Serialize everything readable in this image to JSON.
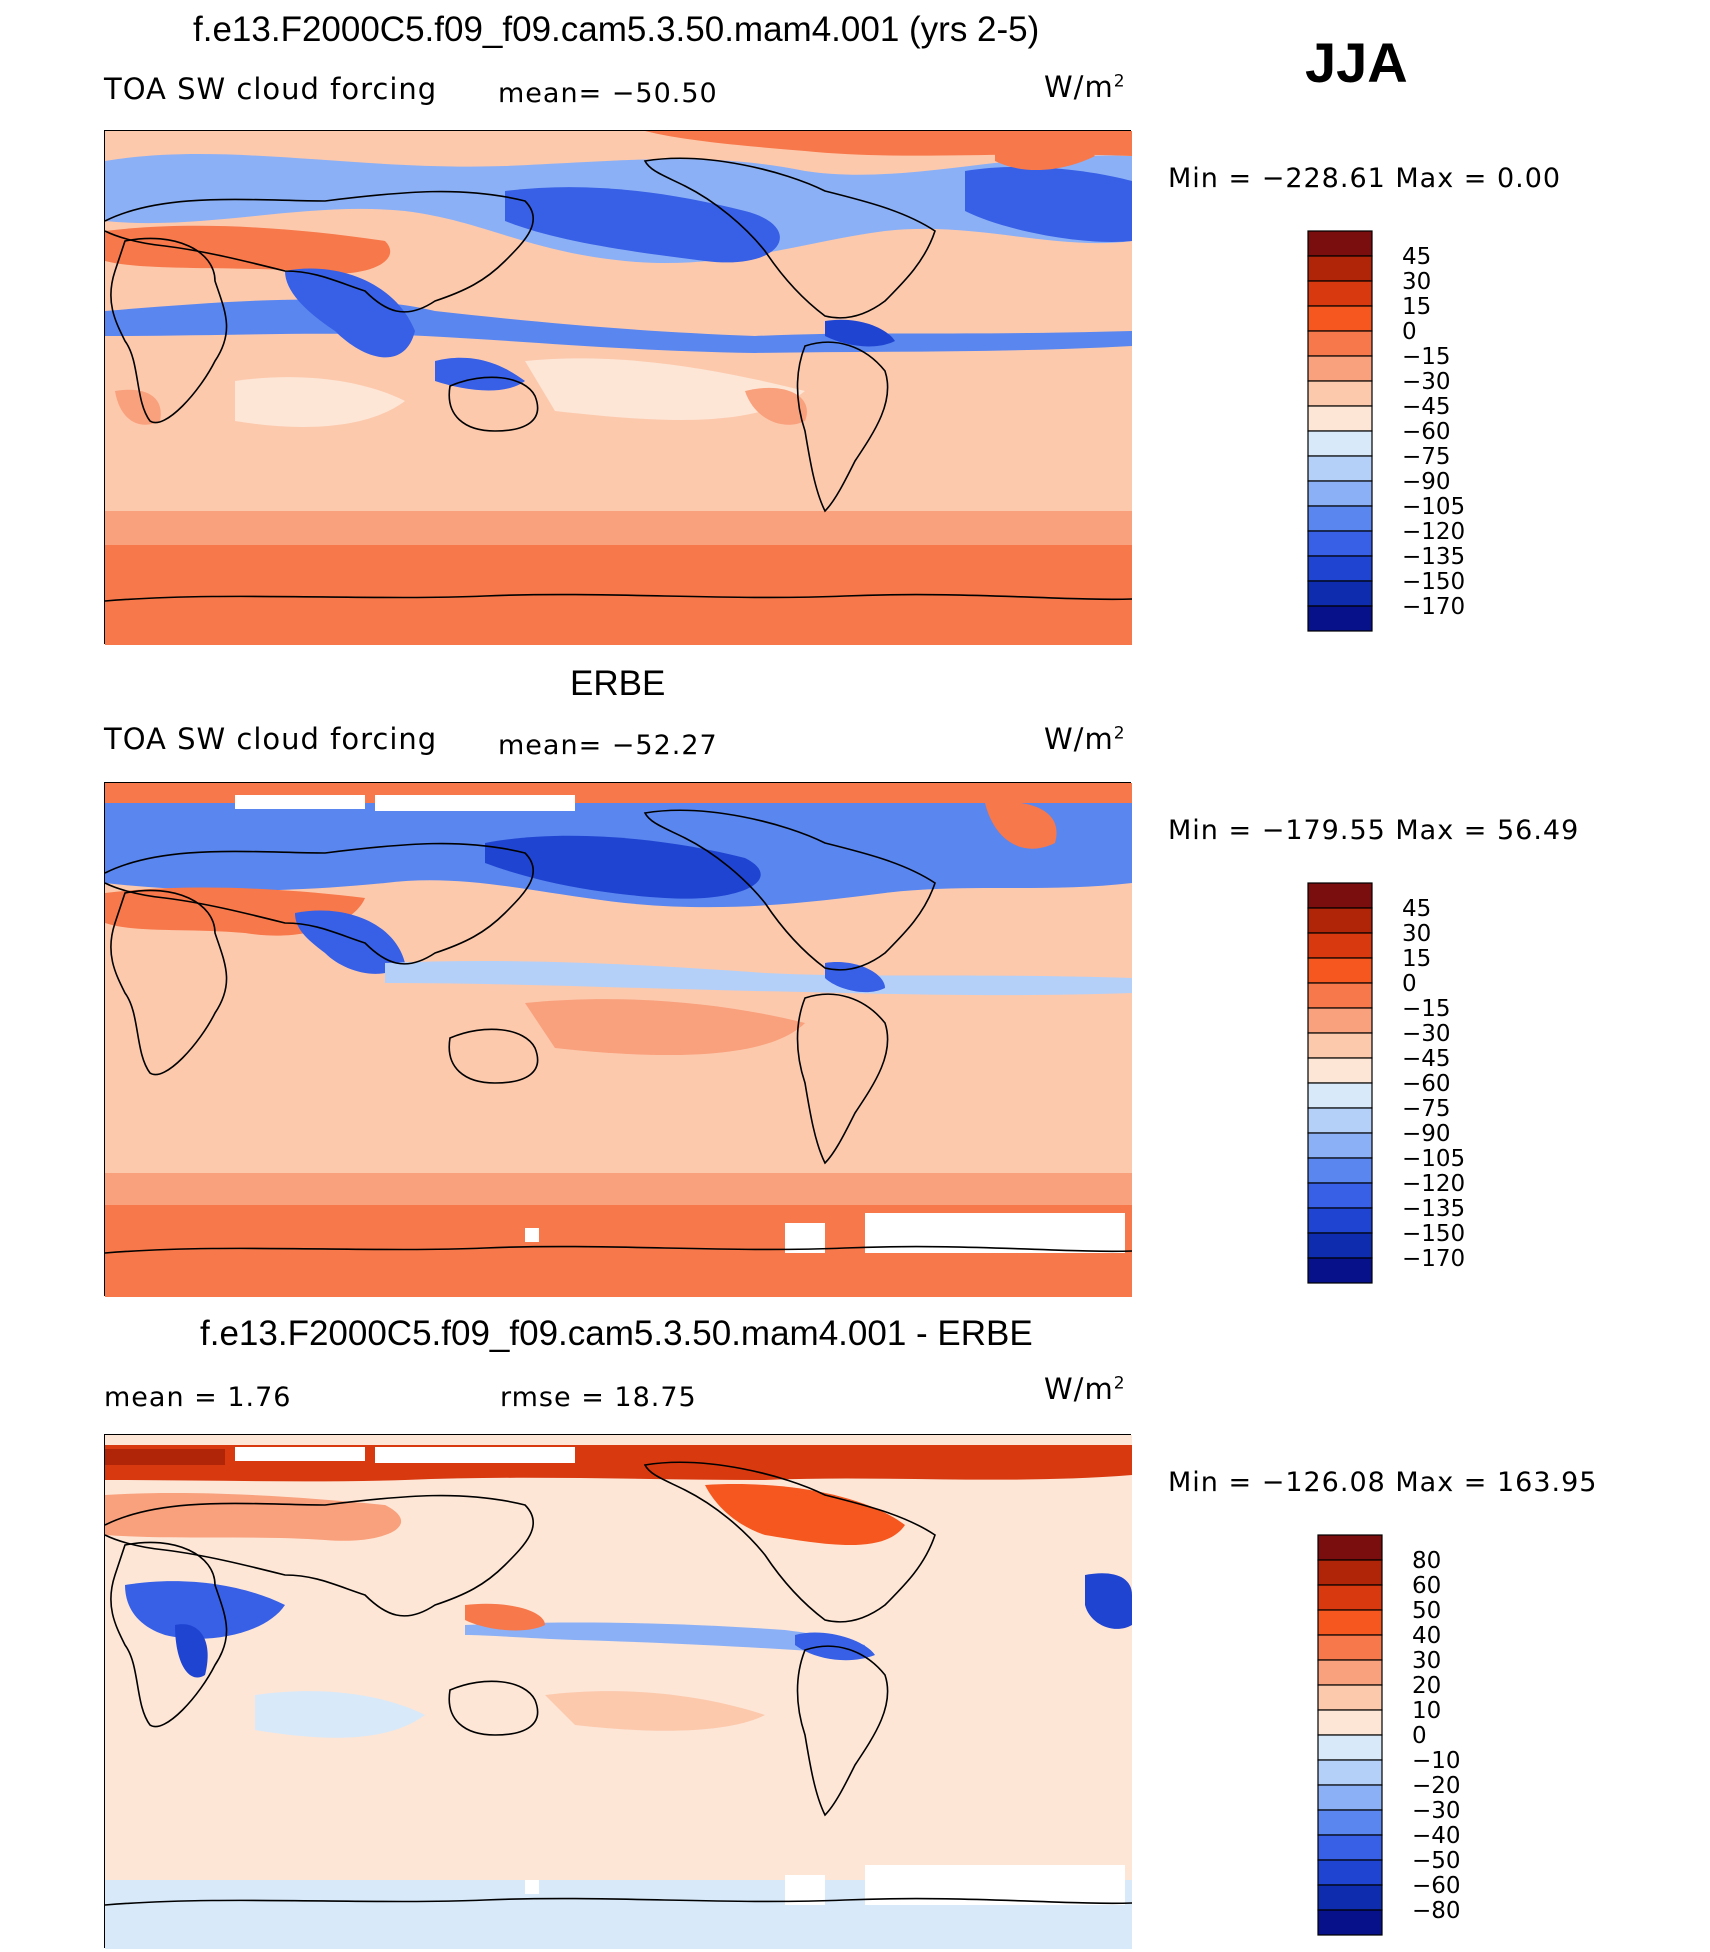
{
  "season": "JJA",
  "units": "W/m",
  "units_sup": "2",
  "panels": [
    {
      "title": "f.e13.F2000C5.f09_f09.cam5.3.50.mam4.001 (yrs 2-5)",
      "variable": "TOA SW cloud forcing",
      "stat_left": "",
      "stat_center": "mean=  −50.50",
      "minmax": "Min  =  −228.61  Max  =     0.00",
      "colorbar_labels": [
        "45",
        "30",
        "15",
        "0",
        "−15",
        "−30",
        "−45",
        "−60",
        "−75",
        "−90",
        "−105",
        "−120",
        "−135",
        "−150",
        "−170"
      ]
    },
    {
      "title": "ERBE",
      "variable": "TOA SW cloud forcing",
      "stat_left": "",
      "stat_center": "mean=  −52.27",
      "minmax": "Min  =  −179.55  Max  =   56.49",
      "colorbar_labels": [
        "45",
        "30",
        "15",
        "0",
        "−15",
        "−30",
        "−45",
        "−60",
        "−75",
        "−90",
        "−105",
        "−120",
        "−135",
        "−150",
        "−170"
      ]
    },
    {
      "title": "f.e13.F2000C5.f09_f09.cam5.3.50.mam4.001 - ERBE",
      "variable": "",
      "stat_left": "mean  =      1.76",
      "stat_center": "rmse  =     18.75",
      "minmax": "Min  =  −126.08  Max  =  163.95",
      "colorbar_labels": [
        "80",
        "60",
        "50",
        "40",
        "30",
        "20",
        "10",
        "0",
        "−10",
        "−20",
        "−30",
        "−40",
        "−50",
        "−60",
        "−80"
      ]
    }
  ],
  "colors": {
    "abs_scale": [
      "#7a0d0d",
      "#b02408",
      "#d9390f",
      "#f5571f",
      "#f7784a",
      "#f9a07c",
      "#fcc9ad",
      "#fde6d6",
      "#d8e9fa",
      "#b4d0f8",
      "#8cb0f5",
      "#5a86ef",
      "#3760e6",
      "#1f44d2",
      "#0d2cae",
      "#06118a"
    ],
    "diff_scale": [
      "#7a0d0d",
      "#b02408",
      "#d9390f",
      "#f5571f",
      "#f7784a",
      "#f9a07c",
      "#fcc9ad",
      "#fde6d6",
      "#d8e9fa",
      "#b4d0f8",
      "#8cb0f5",
      "#5a86ef",
      "#3760e6",
      "#1f44d2",
      "#0d2cae",
      "#06118a"
    ],
    "land_outline": "#000000",
    "missing": "#ffffff"
  }
}
